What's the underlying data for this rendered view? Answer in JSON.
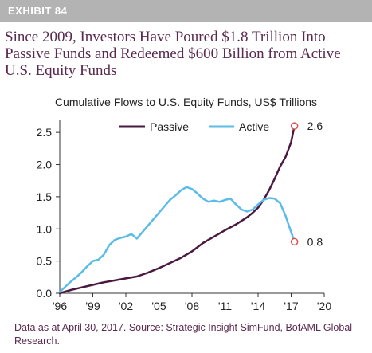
{
  "exhibit": {
    "label": "EXHIBIT 84"
  },
  "headline": "Since 2009, Investors Have Poured $1.8 Trillion Into Passive Funds and Redeemed $600 Billion from Active U.S. Equity Funds",
  "source_note": "Data as at April 30, 2017. Source: Strategic Insight SimFund, BofAML Global Research.",
  "colors": {
    "passive": "#4a1942",
    "active": "#5bbce8",
    "endpoint_marker": "#d9534f",
    "banner": "#b3b3b3",
    "headline_text": "#5a2a4e"
  },
  "chart_data": {
    "type": "line",
    "title": "Cumulative Flows to U.S. Equity Funds, US$ Trillions",
    "xlabel": "",
    "ylabel": "",
    "xlim": [
      1996,
      2020
    ],
    "ylim": [
      0,
      2.7
    ],
    "x_ticks": [
      1996,
      1999,
      2002,
      2005,
      2008,
      2011,
      2014,
      2017,
      2020
    ],
    "x_tick_labels": [
      "'96",
      "'99",
      "'02",
      "'05",
      "'08",
      "'11",
      "'14",
      "'17",
      "'20"
    ],
    "y_ticks": [
      0,
      0.5,
      1.0,
      1.5,
      2.0,
      2.5
    ],
    "y_tick_labels": [
      "0.0",
      "0.5",
      "1.0",
      "1.5",
      "2.0",
      "2.5"
    ],
    "grid": false,
    "legend_position": "top",
    "series": [
      {
        "name": "Passive",
        "x": [
          1996.0,
          1997.0,
          1998.0,
          1999.0,
          2000.0,
          2001.0,
          2002.0,
          2003.0,
          2004.0,
          2005.0,
          2006.0,
          2007.0,
          2008.0,
          2009.0,
          2010.0,
          2011.0,
          2012.0,
          2013.0,
          2013.5,
          2014.0,
          2014.5,
          2015.0,
          2015.5,
          2016.0,
          2016.5,
          2017.0,
          2017.3
        ],
        "y": [
          0.0,
          0.05,
          0.09,
          0.13,
          0.17,
          0.2,
          0.23,
          0.26,
          0.32,
          0.39,
          0.47,
          0.55,
          0.65,
          0.78,
          0.88,
          0.98,
          1.07,
          1.18,
          1.25,
          1.33,
          1.45,
          1.6,
          1.78,
          1.97,
          2.12,
          2.35,
          2.6
        ]
      },
      {
        "name": "Active",
        "x": [
          1996.0,
          1996.5,
          1997.0,
          1997.5,
          1998.0,
          1998.5,
          1999.0,
          1999.5,
          2000.0,
          2000.5,
          2001.0,
          2001.5,
          2002.0,
          2002.5,
          2003.0,
          2003.5,
          2004.0,
          2004.5,
          2005.0,
          2005.5,
          2006.0,
          2006.5,
          2007.0,
          2007.5,
          2008.0,
          2008.5,
          2009.0,
          2009.5,
          2010.0,
          2010.5,
          2011.0,
          2011.5,
          2012.0,
          2012.5,
          2013.0,
          2013.5,
          2014.0,
          2014.5,
          2015.0,
          2015.5,
          2016.0,
          2016.5,
          2016.8,
          2017.0,
          2017.3
        ],
        "y": [
          0.02,
          0.1,
          0.18,
          0.25,
          0.33,
          0.42,
          0.5,
          0.52,
          0.6,
          0.75,
          0.83,
          0.86,
          0.88,
          0.92,
          0.85,
          0.95,
          1.05,
          1.15,
          1.25,
          1.35,
          1.45,
          1.52,
          1.6,
          1.65,
          1.62,
          1.55,
          1.47,
          1.42,
          1.44,
          1.42,
          1.45,
          1.47,
          1.38,
          1.3,
          1.27,
          1.3,
          1.38,
          1.45,
          1.48,
          1.47,
          1.4,
          1.2,
          1.05,
          0.95,
          0.8
        ]
      }
    ],
    "annotations": [
      {
        "series": "Passive",
        "x": 2017.3,
        "y": 2.6,
        "label": "2.6"
      },
      {
        "series": "Active",
        "x": 2017.3,
        "y": 0.8,
        "label": "0.8"
      }
    ]
  }
}
